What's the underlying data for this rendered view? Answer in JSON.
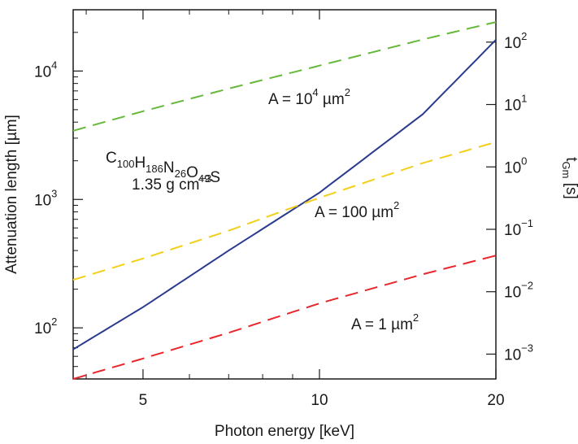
{
  "chart_data": {
    "type": "line",
    "x_scale": "log",
    "y_scale": "log",
    "y2_scale": "log",
    "xlabel": "Photon energy [keV]",
    "ylabel": "Attenuation length [µm]",
    "y2label": {
      "base": "t",
      "sub": "Gm",
      "unit": " [s]"
    },
    "xlim": [
      3.8,
      20
    ],
    "ylim": [
      40,
      30000
    ],
    "y2lim": [
      0.0004,
      330
    ],
    "x_ticks": [
      {
        "value": 5,
        "label": "5"
      },
      {
        "value": 10,
        "label": "10"
      },
      {
        "value": 20,
        "label": "20"
      }
    ],
    "x_minor_ticks": [
      4,
      6,
      7,
      8,
      9
    ],
    "y_ticks": [
      {
        "value": 100,
        "base": "10",
        "exp": "2"
      },
      {
        "value": 1000,
        "base": "10",
        "exp": "3"
      },
      {
        "value": 10000,
        "base": "10",
        "exp": "4"
      }
    ],
    "y_minor_ticks": [
      40,
      50,
      60,
      70,
      80,
      90,
      200,
      300,
      400,
      500,
      600,
      700,
      800,
      900,
      2000,
      3000,
      4000,
      5000,
      6000,
      7000,
      8000,
      9000,
      20000,
      30000
    ],
    "y2_ticks": [
      {
        "value": 0.001,
        "base": "10",
        "exp": "−3"
      },
      {
        "value": 0.01,
        "base": "10",
        "exp": "−2"
      },
      {
        "value": 0.1,
        "base": "10",
        "exp": "−1"
      },
      {
        "value": 1,
        "base": "10",
        "exp": "0"
      },
      {
        "value": 10,
        "base": "10",
        "exp": "1"
      },
      {
        "value": 100,
        "base": "10",
        "exp": "2"
      }
    ],
    "attenuation_series": {
      "color": "#2a3b8f",
      "axis": "left",
      "style": "solid",
      "x": [
        3.8,
        5,
        7,
        10,
        15,
        20
      ],
      "y": [
        68,
        145,
        400,
        1130,
        4600,
        17500
      ]
    },
    "time_series": [
      {
        "label": {
          "prefix": "A = 10",
          "sup": "4",
          "suffix": " µm",
          "sup2": "2"
        },
        "color": "#66b83a",
        "axis": "right",
        "style": "dashed",
        "x": [
          3.8,
          5,
          7,
          10,
          15,
          20
        ],
        "y": [
          3.8,
          7.8,
          18,
          42,
          110,
          210
        ]
      },
      {
        "label": {
          "prefix": "A = 100 µm",
          "sup": "2",
          "suffix": "",
          "sup2": ""
        },
        "color": "#f2cf1a",
        "axis": "right",
        "style": "dashed",
        "x": [
          3.8,
          5,
          7,
          10,
          15,
          20
        ],
        "y": [
          0.0155,
          0.034,
          0.095,
          0.32,
          1.15,
          2.5
        ]
      },
      {
        "label": {
          "prefix": "A = 1 µm",
          "sup": "2",
          "suffix": "",
          "sup2": ""
        },
        "color": "#e8262b",
        "axis": "right",
        "style": "dashed",
        "x": [
          3.8,
          5,
          7,
          10,
          15,
          20
        ],
        "y": [
          0.0004,
          0.00085,
          0.0022,
          0.0065,
          0.019,
          0.038
        ]
      }
    ],
    "material": {
      "formula": [
        {
          "t": "C",
          "s": "100"
        },
        {
          "t": "H",
          "s": "186"
        },
        {
          "t": "N",
          "s": "26"
        },
        {
          "t": "O",
          "s": "49"
        },
        {
          "t": "S",
          "s": ""
        }
      ],
      "density": {
        "prefix": "1.35 g cm",
        "sup": "−3"
      }
    }
  }
}
